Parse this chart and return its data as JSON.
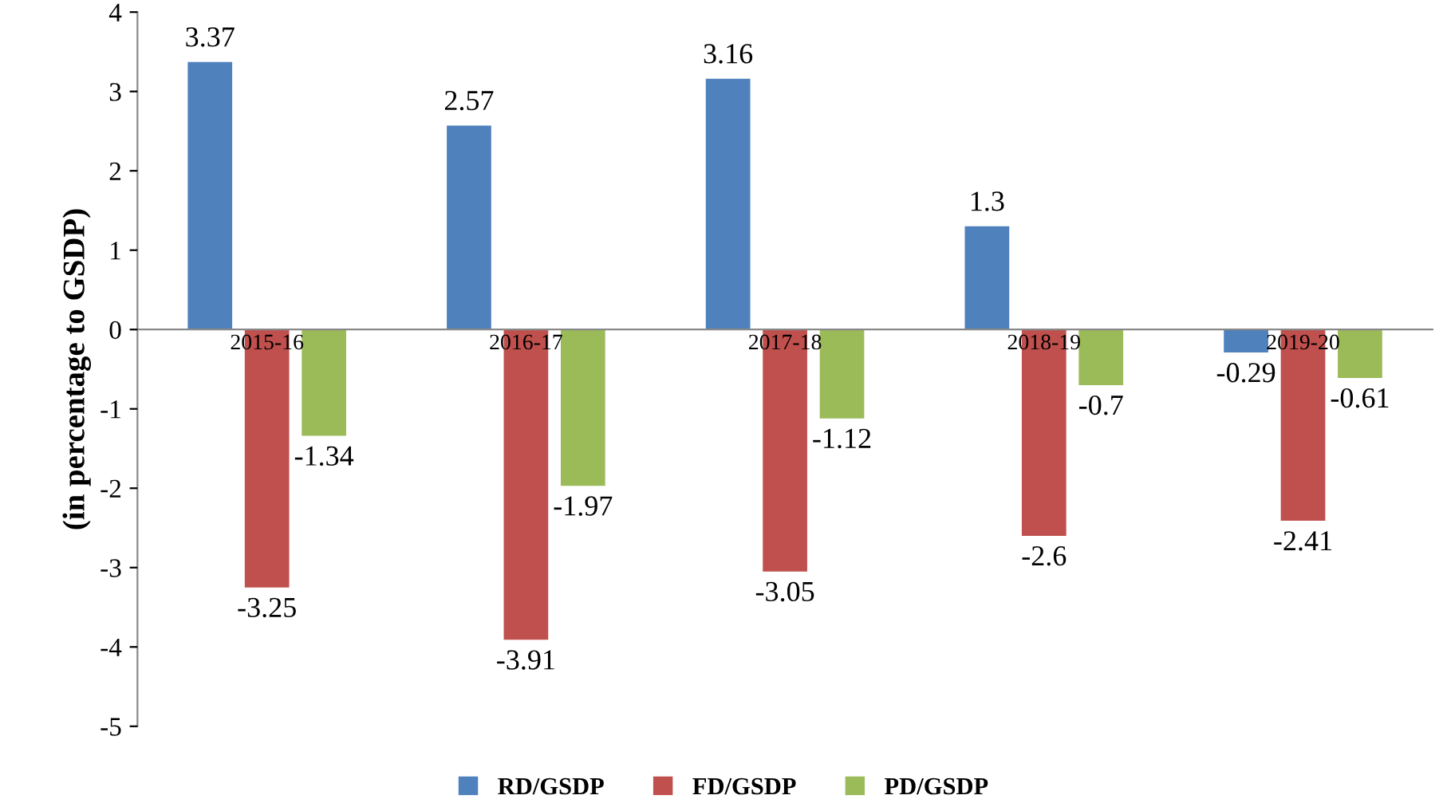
{
  "chart_data": {
    "type": "bar",
    "ylabel": "(in percentage to GSDP)",
    "categories": [
      "2015-16",
      "2016-17",
      "2017-18",
      "2018-19",
      "2019-20"
    ],
    "series": [
      {
        "name": "RD/GSDP",
        "color": "#4f81bd",
        "values": [
          3.37,
          2.57,
          3.16,
          1.3,
          -0.29
        ]
      },
      {
        "name": "FD/GSDP",
        "color": "#c0504d",
        "values": [
          -3.25,
          -3.91,
          -3.05,
          -2.6,
          -2.41
        ]
      },
      {
        "name": "PD/GSDP",
        "color": "#9bbb59",
        "values": [
          -1.34,
          -1.97,
          -1.12,
          -0.7,
          -0.61
        ]
      }
    ],
    "ylim": [
      -5,
      4
    ],
    "yticks": [
      -5,
      -4,
      -3,
      -2,
      -1,
      0,
      1,
      2,
      3,
      4
    ],
    "data_labels": true,
    "grid": false,
    "legend": "bottom"
  }
}
